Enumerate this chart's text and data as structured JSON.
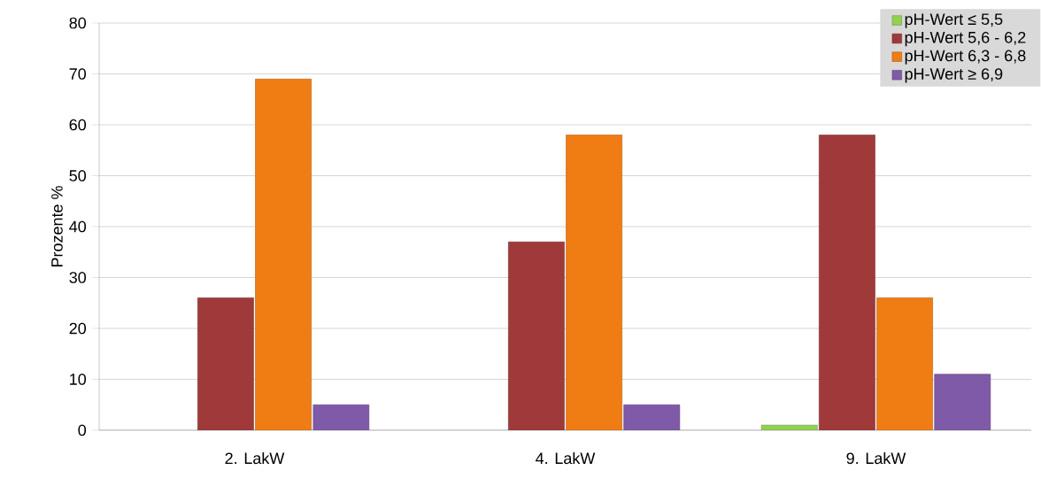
{
  "chart_data": {
    "type": "bar",
    "categories": [
      "2. LakW",
      "4. LakW",
      "9. LakW"
    ],
    "series": [
      {
        "name": "pH-Wert ≤ 5,5",
        "color": "#92d050",
        "values": [
          null,
          null,
          1
        ]
      },
      {
        "name": "pH-Wert 5,6 - 6,2",
        "color": "#a0393a",
        "values": [
          26,
          37,
          58
        ]
      },
      {
        "name": "pH-Wert 6,3 - 6,8",
        "color": "#f07c14",
        "values": [
          69,
          58,
          26
        ]
      },
      {
        "name": "pH-Wert ≥ 6,9",
        "color": "#7f5aa8",
        "values": [
          5,
          5,
          11
        ]
      }
    ],
    "ylabel": "Prozente %",
    "ylim": [
      0,
      80
    ],
    "yticks": [
      0,
      10,
      20,
      30,
      40,
      50,
      60,
      70,
      80
    ],
    "grid": "y",
    "legend": "top right"
  }
}
